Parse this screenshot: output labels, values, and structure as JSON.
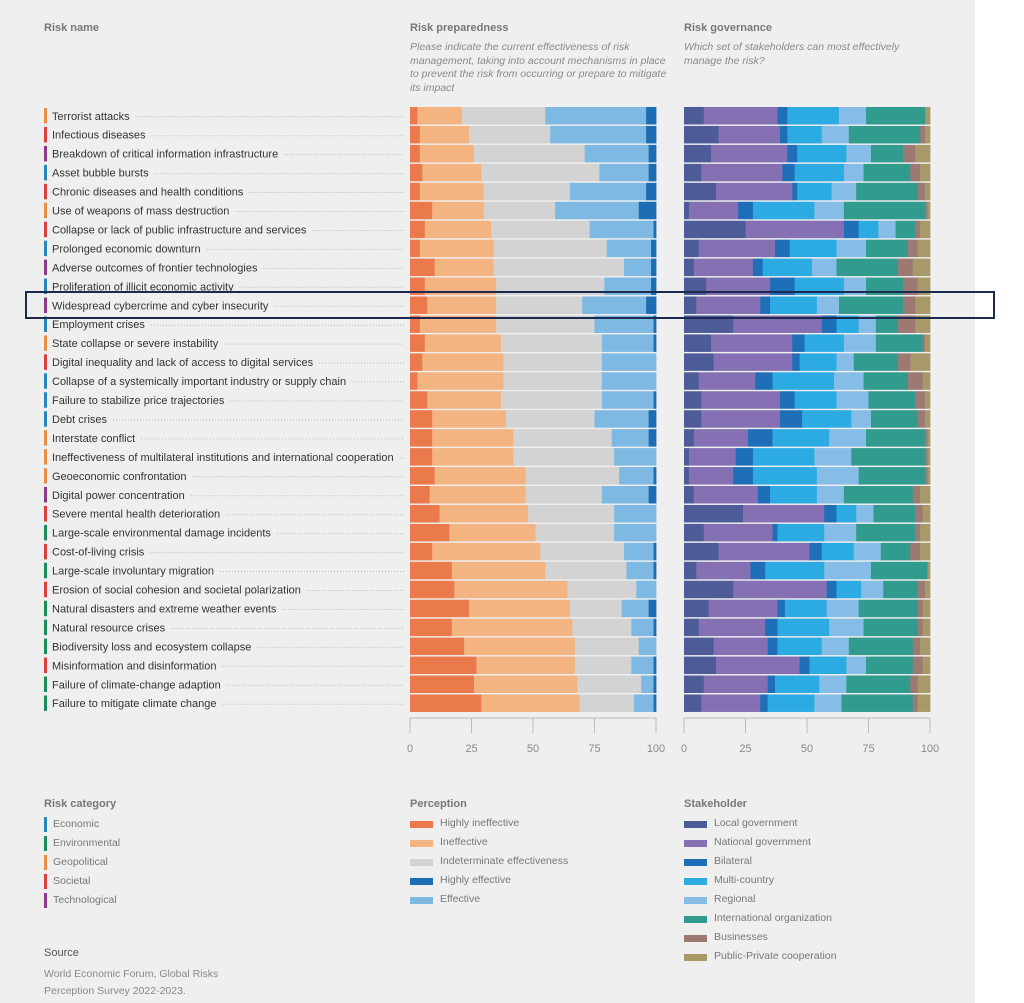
{
  "headers": {
    "risk_name": "Risk name",
    "preparedness_title": "Risk preparedness",
    "preparedness_subtitle": "Please indicate the current effectiveness of risk management, taking into account mechanisms in place to prevent the risk from occurring or prepare to mitigate its impact",
    "governance_title": "Risk governance",
    "governance_subtitle": "Which set of stakeholders can most effectively manage the risk?"
  },
  "colors": {
    "Economic": "#2b86b8",
    "Environmental": "#1e8c5c",
    "Geopolitical": "#e8904a",
    "Societal": "#d9413d",
    "Technological": "#8c3a8c"
  },
  "risk_category_legend": {
    "title": "Risk category",
    "items": [
      "Economic",
      "Environmental",
      "Geopolitical",
      "Societal",
      "Technological"
    ]
  },
  "source": {
    "title": "Source",
    "line1": "World Economic Forum, Global Risks",
    "line2": "Perception Survey 2022-2023."
  },
  "highlighted_risk": "Widespread cybercrime and cyber insecurity",
  "chart_data": [
    {
      "type": "bar",
      "orientation": "horizontal-stacked",
      "title": "Risk preparedness",
      "legend_title": "Perception",
      "xlim": [
        0,
        100
      ],
      "xticks": [
        0,
        25,
        50,
        75,
        100
      ],
      "series": [
        {
          "name": "Highly ineffective",
          "color": "#ea7a4c"
        },
        {
          "name": "Ineffective",
          "color": "#f4b482"
        },
        {
          "name": "Indeterminate effectiveness",
          "color": "#d3d3d3"
        },
        {
          "name": "Effective",
          "color": "#7db9e3"
        },
        {
          "name": "Highly effective",
          "color": "#1d6db5"
        }
      ],
      "legend_order": [
        "Highly ineffective",
        "Ineffective",
        "Indeterminate effectiveness",
        "Highly effective",
        "Effective"
      ],
      "rows": [
        {
          "name": "Terrorist attacks",
          "category": "Geopolitical",
          "values": [
            3,
            18,
            34,
            41,
            4
          ]
        },
        {
          "name": "Infectious diseases",
          "category": "Societal",
          "values": [
            4,
            20,
            33,
            39,
            4
          ]
        },
        {
          "name": "Breakdown of critical information infrastructure",
          "category": "Technological",
          "values": [
            4,
            22,
            45,
            26,
            3
          ]
        },
        {
          "name": "Asset bubble bursts",
          "category": "Economic",
          "values": [
            5,
            24,
            48,
            20,
            3
          ]
        },
        {
          "name": "Chronic diseases and health conditions",
          "category": "Societal",
          "values": [
            4,
            26,
            35,
            31,
            4
          ]
        },
        {
          "name": "Use of weapons of mass destruction",
          "category": "Geopolitical",
          "values": [
            9,
            21,
            29,
            34,
            7
          ]
        },
        {
          "name": "Collapse or lack of public infrastructure and services",
          "category": "Societal",
          "values": [
            6,
            27,
            40,
            26,
            1
          ]
        },
        {
          "name": "Prolonged economic downturn",
          "category": "Economic",
          "values": [
            4,
            30,
            46,
            18,
            2
          ]
        },
        {
          "name": "Adverse outcomes of frontier technologies",
          "category": "Technological",
          "values": [
            10,
            24,
            53,
            11,
            2
          ]
        },
        {
          "name": "Proliferation of illicit economic activity",
          "category": "Economic",
          "values": [
            6,
            29,
            44,
            19,
            2
          ]
        },
        {
          "name": "Widespread cybercrime and cyber insecurity",
          "category": "Technological",
          "values": [
            7,
            28,
            35,
            26,
            4
          ]
        },
        {
          "name": "Employment crises",
          "category": "Economic",
          "values": [
            4,
            31,
            40,
            24,
            1
          ]
        },
        {
          "name": "State collapse or severe instability",
          "category": "Geopolitical",
          "values": [
            6,
            31,
            41,
            21,
            1
          ]
        },
        {
          "name": "Digital inequality and lack of access to digital services",
          "category": "Societal",
          "values": [
            5,
            33,
            40,
            22,
            0
          ]
        },
        {
          "name": "Collapse of a systemically important industry or supply chain",
          "category": "Economic",
          "values": [
            3,
            35,
            40,
            22,
            0
          ]
        },
        {
          "name": "Failure to stabilize price trajectories",
          "category": "Economic",
          "values": [
            7,
            30,
            41,
            21,
            1
          ]
        },
        {
          "name": "Debt crises",
          "category": "Economic",
          "values": [
            9,
            30,
            36,
            22,
            3
          ]
        },
        {
          "name": "Interstate conflict",
          "category": "Geopolitical",
          "values": [
            9,
            33,
            40,
            15,
            3
          ]
        },
        {
          "name": "Ineffectiveness of multilateral institutions and international cooperation",
          "category": "Geopolitical",
          "values": [
            9,
            33,
            41,
            17,
            0
          ]
        },
        {
          "name": "Geoeconomic confrontation",
          "category": "Geopolitical",
          "values": [
            10,
            37,
            38,
            14,
            1
          ]
        },
        {
          "name": "Digital power concentration",
          "category": "Technological",
          "values": [
            8,
            39,
            31,
            19,
            3
          ]
        },
        {
          "name": "Severe mental health deterioration",
          "category": "Societal",
          "values": [
            12,
            36,
            35,
            17,
            0
          ]
        },
        {
          "name": "Large-scale environmental damage incidents",
          "category": "Environmental",
          "values": [
            16,
            35,
            32,
            17,
            0
          ]
        },
        {
          "name": "Cost-of-living crisis",
          "category": "Societal",
          "values": [
            9,
            44,
            34,
            12,
            1
          ]
        },
        {
          "name": "Large-scale involuntary migration",
          "category": "Environmental",
          "values": [
            17,
            38,
            33,
            11,
            1
          ]
        },
        {
          "name": "Erosion of social cohesion and societal polarization",
          "category": "Societal",
          "values": [
            18,
            46,
            28,
            8,
            0
          ]
        },
        {
          "name": "Natural disasters and extreme weather events",
          "category": "Environmental",
          "values": [
            24,
            41,
            21,
            11,
            3
          ]
        },
        {
          "name": "Natural resource crises",
          "category": "Environmental",
          "values": [
            17,
            49,
            24,
            9,
            1
          ]
        },
        {
          "name": "Biodiversity loss and ecosystem collapse",
          "category": "Environmental",
          "values": [
            22,
            45,
            26,
            7,
            0
          ]
        },
        {
          "name": "Misinformation and disinformation",
          "category": "Societal",
          "values": [
            27,
            40,
            23,
            9,
            1
          ]
        },
        {
          "name": "Failure of climate-change adaption",
          "category": "Environmental",
          "values": [
            26,
            42,
            26,
            5,
            1
          ]
        },
        {
          "name": "Failure to mitigate climate change",
          "category": "Environmental",
          "values": [
            29,
            40,
            22,
            8,
            1
          ]
        }
      ]
    },
    {
      "type": "bar",
      "orientation": "horizontal-stacked",
      "title": "Risk governance",
      "legend_title": "Stakeholder",
      "xlim": [
        0,
        100
      ],
      "xticks": [
        0,
        25,
        50,
        75,
        100
      ],
      "series": [
        {
          "name": "Local government",
          "color": "#4d5c99"
        },
        {
          "name": "National government",
          "color": "#8470b2"
        },
        {
          "name": "Bilateral",
          "color": "#1e6fb8"
        },
        {
          "name": "Multi-country",
          "color": "#2cabe3"
        },
        {
          "name": "Regional",
          "color": "#86bde6"
        },
        {
          "name": "International organization",
          "color": "#319b8e"
        },
        {
          "name": "Businesses",
          "color": "#9c7a73"
        },
        {
          "name": "Public-Private cooperation",
          "color": "#a89a68"
        }
      ],
      "legend_order": [
        "Local government",
        "National government",
        "Bilateral",
        "Multi-country",
        "Regional",
        "International organization",
        "Businesses",
        "Public-Private cooperation"
      ],
      "rows": [
        {
          "name": "Terrorist attacks",
          "values": [
            8,
            30,
            4,
            21,
            11,
            24,
            0,
            2
          ]
        },
        {
          "name": "Infectious diseases",
          "values": [
            14,
            25,
            3,
            14,
            11,
            29,
            2,
            2
          ]
        },
        {
          "name": "Breakdown of critical information infrastructure",
          "values": [
            11,
            31,
            4,
            20,
            10,
            13,
            5,
            6
          ]
        },
        {
          "name": "Asset bubble bursts",
          "values": [
            7,
            33,
            5,
            20,
            8,
            19,
            4,
            4
          ]
        },
        {
          "name": "Chronic diseases and health conditions",
          "values": [
            13,
            31,
            2,
            14,
            10,
            25,
            3,
            2
          ]
        },
        {
          "name": "Use of weapons of mass destruction",
          "values": [
            2,
            20,
            6,
            25,
            12,
            33,
            1,
            1
          ]
        },
        {
          "name": "Collapse or lack of public infrastructure and services",
          "values": [
            25,
            40,
            6,
            8,
            7,
            8,
            2,
            4
          ]
        },
        {
          "name": "Prolonged economic downturn",
          "values": [
            6,
            31,
            6,
            19,
            12,
            17,
            4,
            5
          ]
        },
        {
          "name": "Adverse outcomes of frontier technologies",
          "values": [
            4,
            24,
            4,
            20,
            10,
            25,
            6,
            7
          ]
        },
        {
          "name": "Proliferation of illicit economic activity",
          "values": [
            9,
            26,
            10,
            20,
            9,
            15,
            6,
            5
          ]
        },
        {
          "name": "Widespread cybercrime and cyber insecurity",
          "values": [
            5,
            26,
            4,
            19,
            9,
            26,
            5,
            6
          ]
        },
        {
          "name": "Employment crises",
          "values": [
            20,
            36,
            6,
            9,
            7,
            9,
            7,
            6
          ]
        },
        {
          "name": "State collapse or severe instability",
          "values": [
            11,
            33,
            5,
            16,
            13,
            19,
            1,
            2
          ]
        },
        {
          "name": "Digital inequality and lack of access to digital services",
          "values": [
            12,
            32,
            3,
            15,
            7,
            18,
            5,
            8
          ]
        },
        {
          "name": "Collapse of a systemically important industry or supply chain",
          "values": [
            6,
            23,
            7,
            25,
            12,
            18,
            6,
            3
          ]
        },
        {
          "name": "Failure to stabilize price trajectories",
          "values": [
            7,
            32,
            6,
            17,
            13,
            19,
            4,
            2
          ]
        },
        {
          "name": "Debt crises",
          "values": [
            7,
            32,
            9,
            20,
            8,
            19,
            3,
            2
          ]
        },
        {
          "name": "Interstate conflict",
          "values": [
            4,
            22,
            10,
            23,
            15,
            24,
            1,
            1
          ]
        },
        {
          "name": "Ineffectiveness of multilateral institutions and international cooperation",
          "values": [
            2,
            19,
            7,
            25,
            15,
            30,
            1,
            1
          ]
        },
        {
          "name": "Geoeconomic confrontation",
          "values": [
            2,
            18,
            8,
            26,
            17,
            27,
            1,
            1
          ]
        },
        {
          "name": "Digital power concentration",
          "values": [
            4,
            26,
            5,
            19,
            11,
            28,
            3,
            4
          ]
        },
        {
          "name": "Severe mental health deterioration",
          "values": [
            24,
            33,
            5,
            8,
            7,
            17,
            3,
            3
          ]
        },
        {
          "name": "Large-scale environmental damage incidents",
          "values": [
            8,
            28,
            2,
            19,
            13,
            24,
            2,
            4
          ]
        },
        {
          "name": "Cost-of-living crisis",
          "values": [
            14,
            37,
            5,
            13,
            11,
            12,
            4,
            4
          ]
        },
        {
          "name": "Large-scale involuntary migration",
          "values": [
            5,
            22,
            6,
            24,
            19,
            23,
            0,
            1
          ]
        },
        {
          "name": "Erosion of social cohesion and societal polarization",
          "values": [
            20,
            38,
            4,
            10,
            9,
            14,
            3,
            2
          ]
        },
        {
          "name": "Natural disasters and extreme weather events",
          "values": [
            10,
            28,
            3,
            17,
            13,
            24,
            2,
            3
          ]
        },
        {
          "name": "Natural resource crises",
          "values": [
            6,
            27,
            5,
            21,
            14,
            22,
            2,
            3
          ]
        },
        {
          "name": "Biodiversity loss and ecosystem collapse",
          "values": [
            12,
            22,
            4,
            18,
            11,
            26,
            3,
            4
          ]
        },
        {
          "name": "Misinformation and disinformation",
          "values": [
            13,
            34,
            4,
            15,
            8,
            19,
            4,
            3
          ]
        },
        {
          "name": "Failure of climate-change adaption",
          "values": [
            8,
            26,
            3,
            18,
            11,
            26,
            3,
            5
          ]
        },
        {
          "name": "Failure to mitigate climate change",
          "values": [
            7,
            24,
            3,
            19,
            11,
            29,
            2,
            5
          ]
        }
      ]
    }
  ]
}
